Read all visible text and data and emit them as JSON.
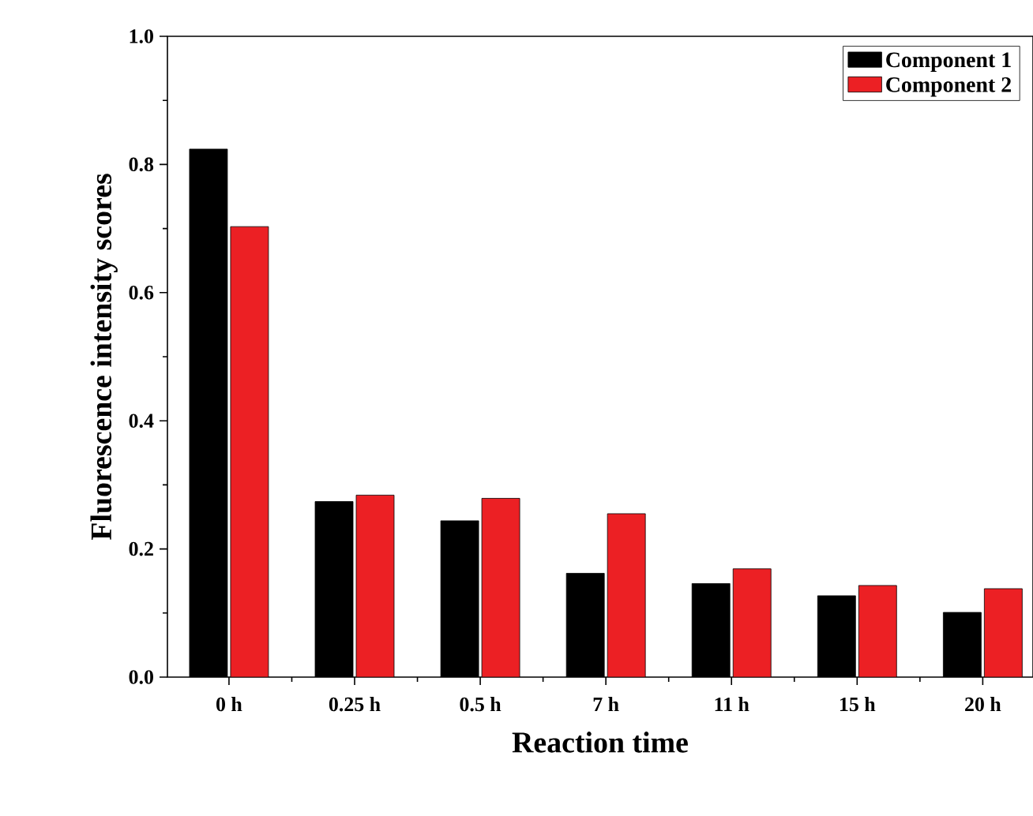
{
  "chart_data": {
    "type": "bar",
    "xlabel": "Reaction time",
    "ylabel": "Fluorescence intensity scores",
    "categories": [
      "0 h",
      "0.25 h",
      "0.5 h",
      "7 h",
      "11 h",
      "15 h",
      "20 h"
    ],
    "series": [
      {
        "name": "Component 1",
        "color": "#000000",
        "values": [
          0.824,
          0.274,
          0.244,
          0.162,
          0.146,
          0.127,
          0.101
        ]
      },
      {
        "name": "Component 2",
        "color": "#ec2024",
        "values": [
          0.703,
          0.284,
          0.279,
          0.255,
          0.169,
          0.143,
          0.138
        ]
      }
    ],
    "ylim": [
      0,
      1.0
    ],
    "yticks": [
      {
        "value": 0,
        "label": "0.0"
      },
      {
        "value": 0.2,
        "label": "0.2"
      },
      {
        "value": 0.4,
        "label": "0.4"
      },
      {
        "value": 0.6,
        "label": "0.6"
      },
      {
        "value": 0.8,
        "label": "0.8"
      },
      {
        "value": 1.0,
        "label": "1.0"
      }
    ],
    "legend": "top right",
    "grid": false
  }
}
